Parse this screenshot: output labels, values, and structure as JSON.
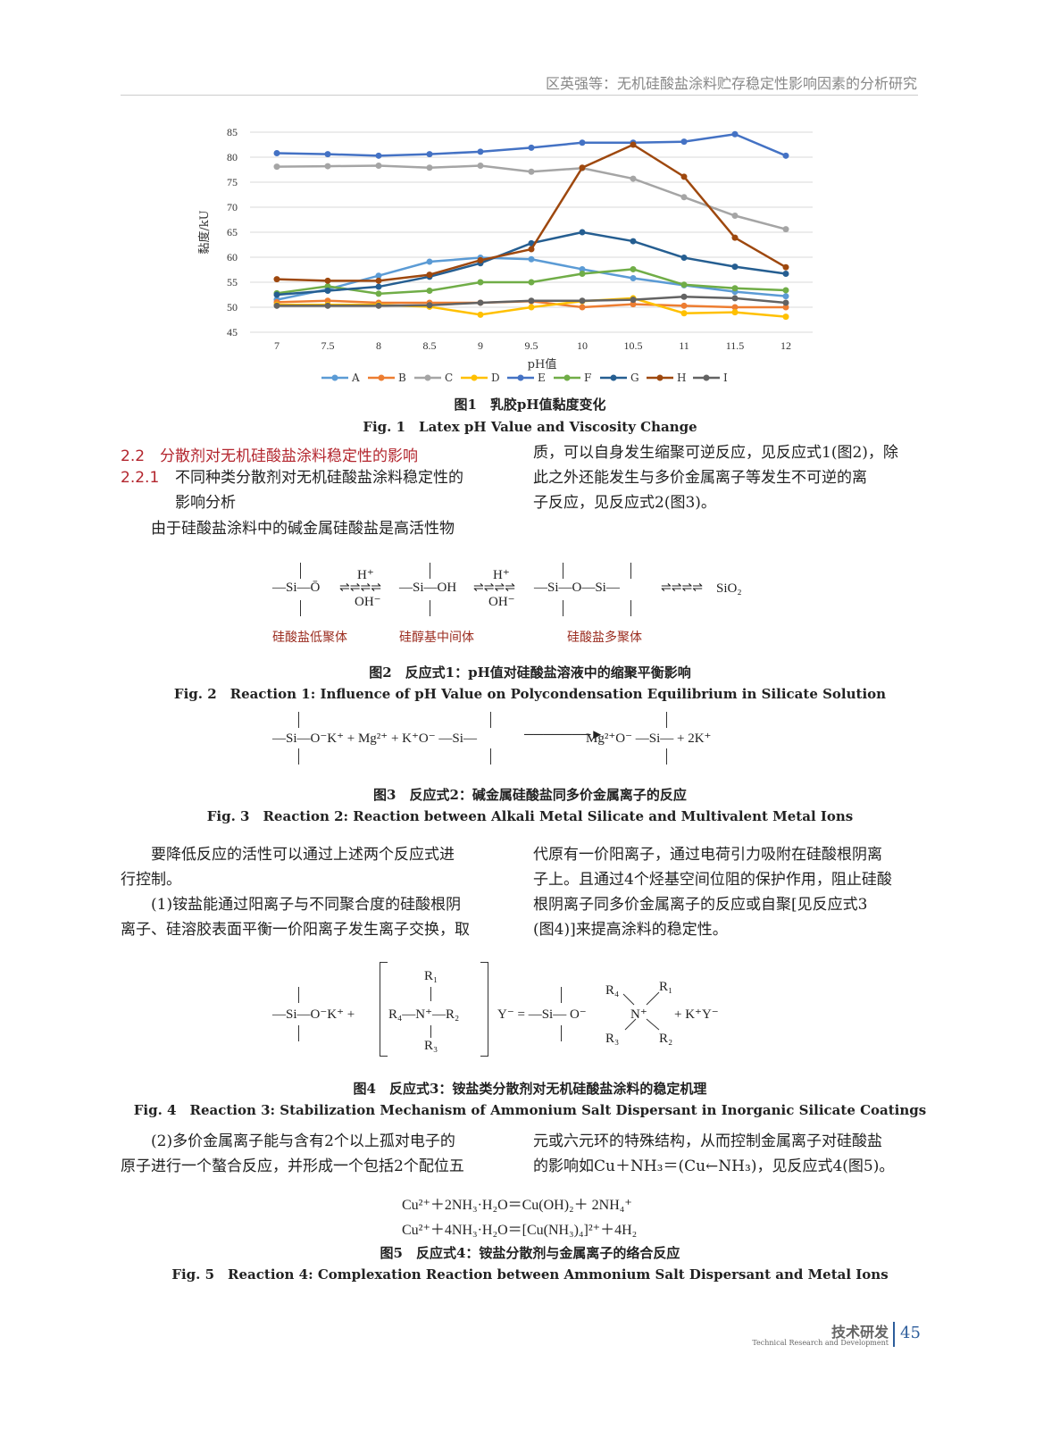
{
  "header": {
    "running_title": "区英强等：无机硅酸盐涂料贮存稳定性影响因素的分析研究"
  },
  "chart_data": {
    "type": "line",
    "title": "",
    "xlabel": "pH值",
    "ylabel": "黏度/kU",
    "x": [
      7,
      7.5,
      8,
      8.5,
      9,
      9.5,
      10,
      10.5,
      11,
      11.5,
      12
    ],
    "x_tick_labels": [
      "7",
      "7.5",
      "8",
      "8.5",
      "9",
      "9.5",
      "10",
      "10.5",
      "11",
      "11.5",
      "12"
    ],
    "ylim": [
      45,
      85
    ],
    "y_ticks": [
      45,
      50,
      55,
      60,
      65,
      70,
      75,
      80,
      85
    ],
    "grid": "horizontal",
    "legend_position": "bottom",
    "series": [
      {
        "name": "A",
        "color": "#5b9bd5",
        "values": [
          51.5,
          53.6,
          56.3,
          59.1,
          59.9,
          59.6,
          57.6,
          55.8,
          54.4,
          53.1,
          52.2
        ]
      },
      {
        "name": "B",
        "color": "#ed7d31",
        "values": [
          51.0,
          51.3,
          50.9,
          50.9,
          50.9,
          51.2,
          50.0,
          50.6,
          50.3,
          50.0,
          50.0
        ]
      },
      {
        "name": "C",
        "color": "#a5a5a5",
        "values": [
          78.1,
          78.2,
          78.3,
          77.9,
          78.3,
          77.1,
          77.8,
          75.7,
          72.0,
          68.3,
          65.6
        ]
      },
      {
        "name": "D",
        "color": "#ffc000",
        "values": [
          50.5,
          50.5,
          50.5,
          50.1,
          48.5,
          50.0,
          51.2,
          51.8,
          48.8,
          49.0,
          48.1
        ]
      },
      {
        "name": "E",
        "color": "#4472c4",
        "values": [
          80.8,
          80.6,
          80.3,
          80.6,
          81.1,
          81.9,
          82.9,
          82.9,
          83.1,
          84.6,
          80.3
        ]
      },
      {
        "name": "F",
        "color": "#70ad47",
        "values": [
          52.8,
          54.2,
          52.7,
          53.3,
          55.0,
          55.0,
          56.7,
          57.6,
          54.5,
          53.8,
          53.4
        ]
      },
      {
        "name": "G",
        "color": "#255e91",
        "values": [
          52.5,
          53.3,
          54.1,
          56.1,
          58.8,
          62.8,
          65.0,
          63.2,
          59.9,
          58.1,
          56.7
        ]
      },
      {
        "name": "H",
        "color": "#9e480e",
        "values": [
          55.6,
          55.3,
          55.3,
          56.5,
          59.4,
          61.6,
          77.9,
          82.5,
          76.1,
          63.9,
          58.0
        ]
      },
      {
        "name": "I",
        "color": "#636363",
        "values": [
          50.3,
          50.3,
          50.3,
          50.4,
          50.9,
          51.3,
          51.3,
          51.5,
          52.1,
          51.8,
          50.9
        ]
      }
    ]
  },
  "fig1": {
    "cn": "图1　乳胶pH值黏度变化",
    "en": "Fig. 1　Latex pH Value and Viscosity Change"
  },
  "section": {
    "h2": "2.2　分散剂对无机硅酸盐涂料稳定性的影响",
    "h3_num": "2.2.1",
    "h3_line1": "不同种类分散剂对无机硅酸盐涂料稳定性的",
    "h3_line2": "影响分析",
    "left_para": "　　由于硅酸盐涂料中的碱金属硅酸盐是高活性物",
    "right_lines": [
      "质，可以自身发生缩聚可逆反应，见反应式1(图2)，除",
      "此之外还能发生与多价金属离子等发生不可逆的离",
      "子反应，见反应式2(图3)。"
    ]
  },
  "reaction1": {
    "si_o": "—Si—Ō",
    "h1": "H⁺",
    "oh1": "OH⁻",
    "si_oh": "—Si—OH",
    "h2": "H⁺",
    "oh2": "OH⁻",
    "si_o_si": "—Si—O—Si—",
    "sio2": "SiO₂",
    "label1": "硅酸盐低聚体",
    "label2": "硅醇基中间体",
    "label3": "硅酸盐多聚体"
  },
  "fig2": {
    "cn": "图2　反应式1：pH值对硅酸盐溶液中的缩聚平衡影响",
    "en": "Fig. 2　Reaction 1: Influence of pH Value on Polycondensation Equilibrium in Silicate Solution"
  },
  "reaction2": {
    "left": "—Si—O⁻K⁺ + Mg²⁺ + K⁺O⁻ —Si—",
    "right": "Mg²⁺O⁻ —Si— + 2K⁺"
  },
  "fig3": {
    "cn": "图3　反应式2：碱金属硅酸盐同多价金属离子的反应",
    "en": "Fig. 3　Reaction 2: Reaction between Alkali Metal Silicate and Multivalent Metal Ions"
  },
  "para2": {
    "left": [
      "　　要降低反应的活性可以通过上述两个反应式进",
      "行控制。",
      "　　(1)铵盐能通过阳离子与不同聚合度的硅酸根阴",
      "离子、硅溶胶表面平衡一价阳离子发生离子交换，取"
    ],
    "right": [
      "代原有一价阳离子，通过电荷引力吸附在硅酸根阴离",
      "子上。且通过4个烃基空间位阻的保护作用，阻止硅酸",
      "根阴离子同多价金属离子的反应或自聚[见反应式3",
      "(图4)]来提高涂料的稳定性。"
    ]
  },
  "reaction3": {
    "a": "—Si—O⁻K⁺ +",
    "r1": "R₁",
    "mid": "R₄—N⁺—R₂",
    "r3": "R₃",
    "y": "Y⁻ = —Si— O⁻",
    "n": "N⁺",
    "r4b": "R₄",
    "r1b": "R₁",
    "r3b": "R₃",
    "r2b": "R₂",
    "end": "+ K⁺Y⁻"
  },
  "fig4": {
    "cn": "图4　反应式3：铵盐类分散剂对无机硅酸盐涂料的稳定机理",
    "en": "Fig. 4　Reaction 3: Stabilization Mechanism of Ammonium Salt Dispersant in Inorganic Silicate Coatings"
  },
  "para3": {
    "left": [
      "　　(2)多价金属离子能与含有2个以上孤对电子的",
      "原子进行一个螯合反应，并形成一个包括2个配位五"
    ],
    "right": [
      "元或六元环的特殊结构，从而控制金属离子对硅酸盐",
      "的影响如Cu＋NH₃＝(Cu←NH₃)，见反应式4(图5)。"
    ]
  },
  "eq": [
    "Cu²⁺＋2NH₃·H₂O＝Cu(OH)₂＋ 2NH₄⁺",
    "Cu²⁺＋4NH₃·H₂O＝[Cu(NH₃)₄]²⁺＋4H₂"
  ],
  "fig5": {
    "cn": "图5　反应式4：铵盐分散剂与金属离子的络合反应",
    "en": "Fig. 5　Reaction 4: Complexation Reaction between Ammonium Salt Dispersant and Metal Ions"
  },
  "footer": {
    "section_cn": "技术研发",
    "section_en": "Technical Research and Development",
    "page": "45"
  }
}
